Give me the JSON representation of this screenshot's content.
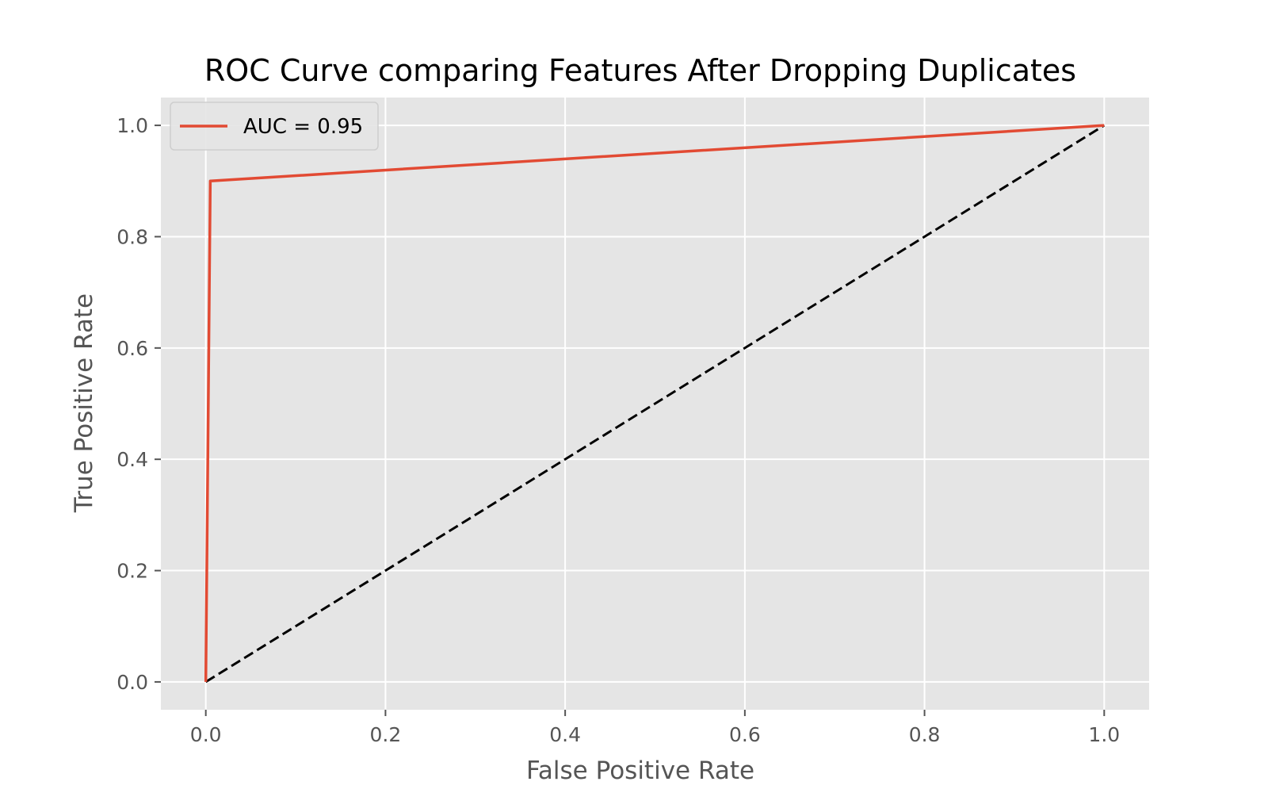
{
  "chart_data": {
    "type": "line",
    "title": "ROC Curve comparing Features After Dropping Duplicates",
    "xlabel": "False Positive Rate",
    "ylabel": "True Positive Rate",
    "xlim": [
      -0.05,
      1.05
    ],
    "ylim": [
      -0.05,
      1.05
    ],
    "xticks": [
      0.0,
      0.2,
      0.4,
      0.6,
      0.8,
      1.0
    ],
    "yticks": [
      0.0,
      0.2,
      0.4,
      0.6,
      0.8,
      1.0
    ],
    "xtick_labels": [
      "0.0",
      "0.2",
      "0.4",
      "0.6",
      "0.8",
      "1.0"
    ],
    "ytick_labels": [
      "0.0",
      "0.2",
      "0.4",
      "0.6",
      "0.8",
      "1.0"
    ],
    "grid": true,
    "legend_position": "top-left",
    "series": [
      {
        "name": "AUC = 0.95",
        "color": "#e24a33",
        "style": "solid",
        "x": [
          0.0,
          0.005,
          1.0
        ],
        "y": [
          0.0,
          0.9,
          1.0
        ]
      },
      {
        "color": "#000000",
        "style": "dashed",
        "x": [
          0.0,
          1.0
        ],
        "y": [
          0.0,
          1.0
        ]
      }
    ]
  },
  "colors": {
    "plot_background": "#e5e5e5",
    "grid": "#ffffff",
    "tick_text": "#555555"
  }
}
